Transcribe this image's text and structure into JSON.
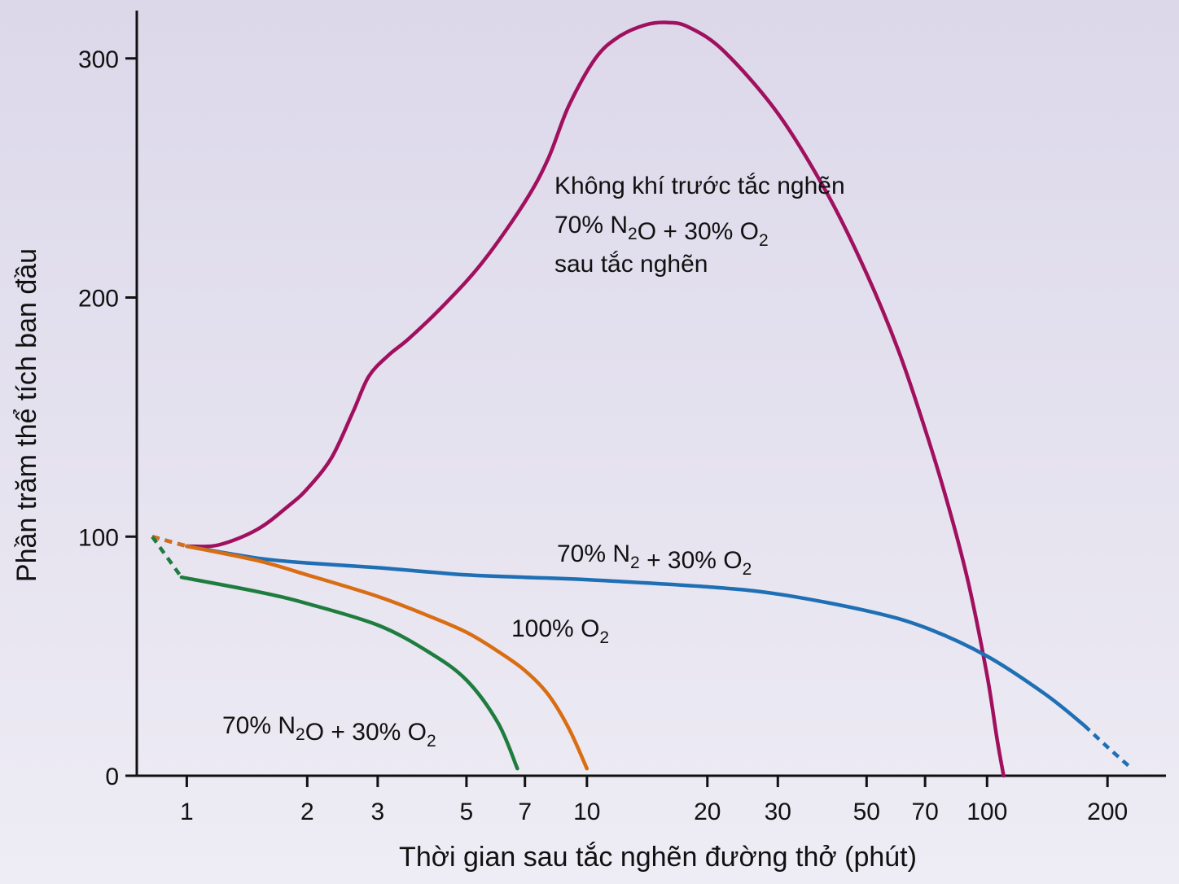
{
  "chart_data": {
    "type": "line",
    "xlabel": "Thời gian sau tắc nghẽn đường thở (phút)",
    "ylabel": "Phần trăm thể tích ban đầu",
    "x_scale": "log",
    "xlim": [
      0.75,
      280
    ],
    "ylim": [
      0,
      320
    ],
    "x_ticks": [
      1,
      2,
      3,
      5,
      7,
      10,
      20,
      30,
      50,
      70,
      100,
      200
    ],
    "y_ticks": [
      0,
      100,
      200,
      300
    ],
    "grid": false,
    "series": [
      {
        "id": "air-n2o",
        "label_lines": [
          {
            "parts": [
              {
                "t": "Không khí trước tắc nghẽn"
              }
            ]
          },
          {
            "parts": [
              {
                "t": "70% N"
              },
              {
                "t": "2",
                "sub": true
              },
              {
                "t": "O + 30% O"
              },
              {
                "t": "2",
                "sub": true
              }
            ]
          },
          {
            "parts": [
              {
                "t": "sau tắc nghẽn"
              }
            ]
          }
        ],
        "color": "#a0105e",
        "dashed_points": [
          [
            0.82,
            100
          ],
          [
            1.0,
            96
          ]
        ],
        "points": [
          [
            1.0,
            96
          ],
          [
            1.2,
            96.5
          ],
          [
            1.5,
            103
          ],
          [
            1.8,
            113
          ],
          [
            2.0,
            120
          ],
          [
            2.3,
            133
          ],
          [
            2.6,
            152
          ],
          [
            2.85,
            167
          ],
          [
            3.2,
            176
          ],
          [
            3.6,
            183
          ],
          [
            4.4,
            197
          ],
          [
            5.5,
            215
          ],
          [
            7.0,
            240
          ],
          [
            8.0,
            258
          ],
          [
            9.0,
            280
          ],
          [
            10.5,
            300
          ],
          [
            12.0,
            309
          ],
          [
            14.0,
            314
          ],
          [
            16.0,
            315
          ],
          [
            18.0,
            313
          ],
          [
            22.0,
            303
          ],
          [
            30.0,
            277
          ],
          [
            40.0,
            243
          ],
          [
            50.0,
            210
          ],
          [
            60.0,
            178
          ],
          [
            70.0,
            145
          ],
          [
            80.0,
            113
          ],
          [
            90.0,
            80
          ],
          [
            100.0,
            42
          ],
          [
            106.0,
            15
          ],
          [
            110.0,
            0
          ]
        ]
      },
      {
        "id": "n2-o2",
        "label_lines": [
          {
            "parts": [
              {
                "t": "70% N"
              },
              {
                "t": "2",
                "sub": true
              },
              {
                "t": " + 30% O"
              },
              {
                "t": "2",
                "sub": true
              }
            ]
          }
        ],
        "color": "#1f6fb5",
        "dashed_points": [
          [
            0.82,
            100
          ],
          [
            1.0,
            96
          ]
        ],
        "points": [
          [
            1.0,
            96
          ],
          [
            1.5,
            91
          ],
          [
            2.0,
            89
          ],
          [
            3.0,
            87
          ],
          [
            5.0,
            84
          ],
          [
            7.0,
            83
          ],
          [
            10.0,
            82
          ],
          [
            20.0,
            79
          ],
          [
            30.0,
            76
          ],
          [
            50.0,
            69
          ],
          [
            70.0,
            62
          ],
          [
            100.0,
            50
          ],
          [
            140.0,
            34
          ],
          [
            175.0,
            21
          ]
        ],
        "tail_dashed": [
          [
            175.0,
            21
          ],
          [
            200.0,
            12
          ],
          [
            230.0,
            3
          ]
        ]
      },
      {
        "id": "o2",
        "label_lines": [
          {
            "parts": [
              {
                "t": "100% O"
              },
              {
                "t": "2",
                "sub": true
              }
            ]
          }
        ],
        "color": "#d96d14",
        "dashed_points": [
          [
            0.82,
            100
          ],
          [
            1.0,
            96
          ]
        ],
        "points": [
          [
            1.0,
            96
          ],
          [
            1.5,
            90
          ],
          [
            2.0,
            84
          ],
          [
            3.0,
            75
          ],
          [
            4.0,
            67
          ],
          [
            5.0,
            60
          ],
          [
            6.0,
            52
          ],
          [
            7.0,
            44
          ],
          [
            8.0,
            34
          ],
          [
            9.0,
            20
          ],
          [
            10.0,
            3
          ]
        ]
      },
      {
        "id": "n2o-o2",
        "label_lines": [
          {
            "parts": [
              {
                "t": "70% N"
              },
              {
                "t": "2",
                "sub": true
              },
              {
                "t": "O + 30% O"
              },
              {
                "t": "2",
                "sub": true
              }
            ]
          }
        ],
        "color": "#1e7d3e",
        "dashed_points": [
          [
            0.82,
            100
          ],
          [
            0.97,
            83
          ]
        ],
        "points": [
          [
            0.97,
            83
          ],
          [
            1.5,
            77
          ],
          [
            2.0,
            72
          ],
          [
            3.0,
            63
          ],
          [
            4.0,
            52
          ],
          [
            5.0,
            40
          ],
          [
            6.0,
            22
          ],
          [
            6.7,
            3
          ]
        ]
      }
    ]
  }
}
